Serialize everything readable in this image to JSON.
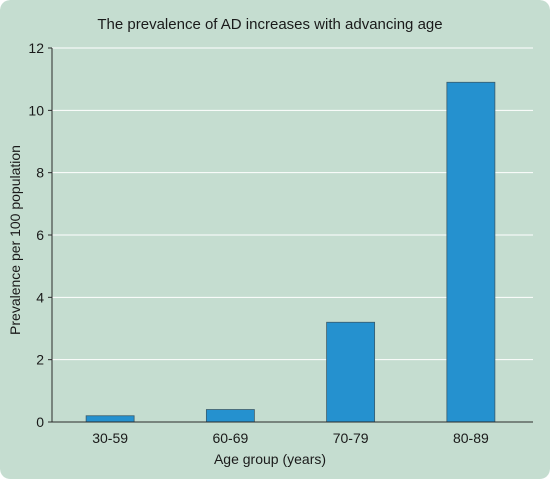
{
  "colors": {
    "background": "#c5ddd0",
    "bar": "#2591cf",
    "bar_stroke": "#3a5a6a",
    "grid": "#ffffff",
    "axis": "#2a2a2a",
    "text": "#1a1a1a"
  },
  "chart_data": {
    "type": "bar",
    "title": "The prevalence of AD increases with advancing age",
    "xlabel": "Age group (years)",
    "ylabel": "Prevalence per 100 population",
    "categories": [
      "30-59",
      "60-69",
      "70-79",
      "80-89"
    ],
    "values": [
      0.2,
      0.4,
      3.2,
      10.9
    ],
    "ylim": [
      0,
      12
    ],
    "yticks": [
      "0",
      "2",
      "4",
      "6",
      "8",
      "10",
      "12"
    ],
    "grid": true,
    "legend": "none"
  }
}
